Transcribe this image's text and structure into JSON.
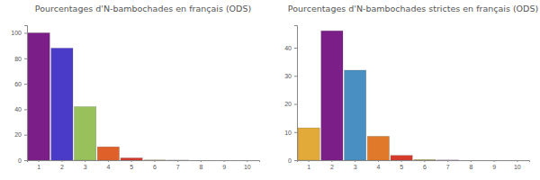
{
  "chart_data": [
    {
      "type": "bar",
      "title": "Pourcentages d'N-bambochades en français (ODS)",
      "categories": [
        "1",
        "2",
        "3",
        "4",
        "5",
        "6",
        "7",
        "8",
        "9",
        "10"
      ],
      "values": [
        100,
        88,
        42,
        10.5,
        1.8,
        0.2,
        0.05,
        0,
        0,
        0
      ],
      "colors": [
        "#7b1e88",
        "#4a3bc9",
        "#98c15c",
        "#e0602a",
        "#d63a2b",
        "#c9a23a",
        "#7b1e88",
        "#4a8fc2",
        "#e07a2a",
        "#d63a2b"
      ],
      "ylim": [
        0,
        106
      ],
      "yticks": [
        0,
        20,
        40,
        60,
        80,
        100
      ],
      "grid": false
    },
    {
      "type": "bar",
      "title": "Pourcentages d'N-bambochades strictes en français (ODS)",
      "categories": [
        "1",
        "2",
        "3",
        "4",
        "5",
        "6",
        "7",
        "8",
        "9",
        "10"
      ],
      "values": [
        11.5,
        46,
        32,
        8.5,
        1.7,
        0.2,
        0.05,
        0,
        0,
        0
      ],
      "colors": [
        "#e2aa38",
        "#7b1e88",
        "#4a8fc2",
        "#e07a2a",
        "#d63a2b",
        "#c9a23a",
        "#7b1e88",
        "#4a8fc2",
        "#e07a2a",
        "#d63a2b"
      ],
      "ylim": [
        0,
        48
      ],
      "yticks": [
        0,
        10,
        20,
        30,
        40
      ],
      "grid": false
    }
  ]
}
